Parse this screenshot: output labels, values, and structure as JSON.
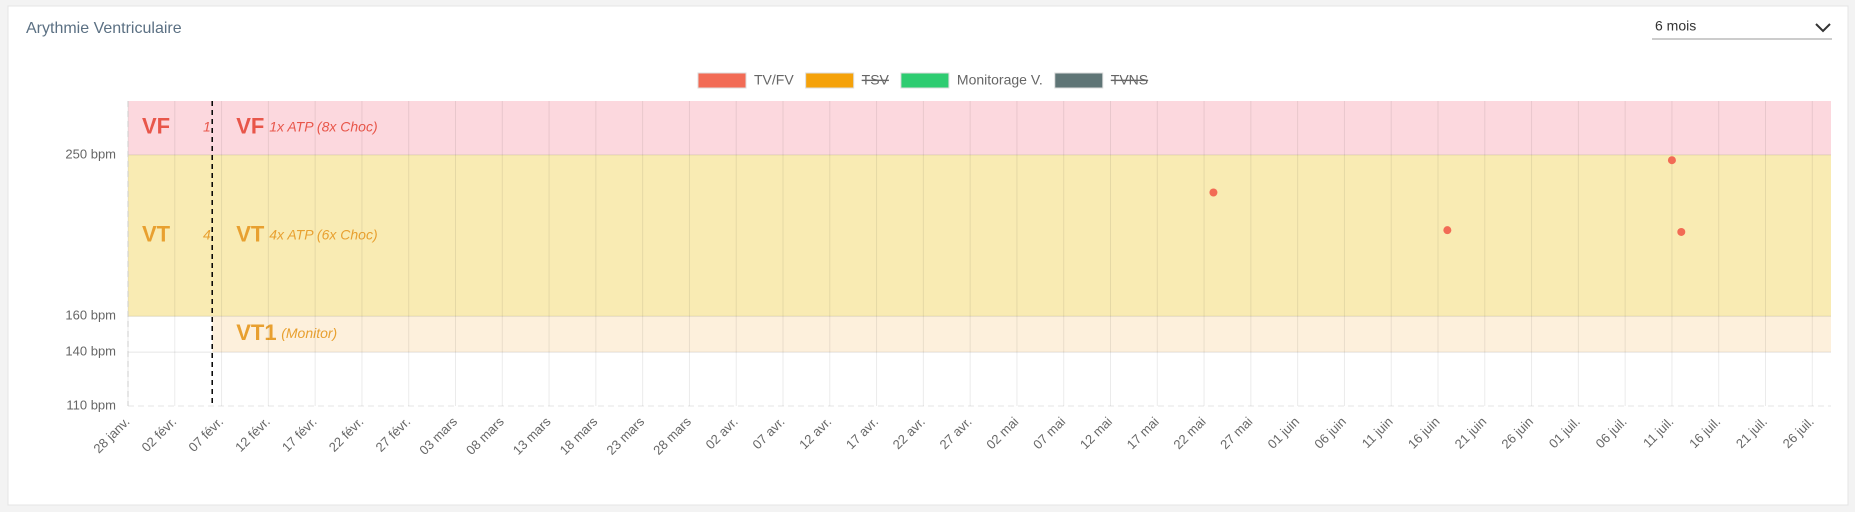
{
  "header": {
    "title": "Arythmie Ventriculaire",
    "period": "6 mois"
  },
  "chart_data": {
    "type": "scatter",
    "series": [
      {
        "name": "TV/FV",
        "color": "#f26b55",
        "hidden": false,
        "x": [
          116,
          141,
          165,
          166
        ],
        "values": [
          229,
          208,
          247,
          207
        ]
      },
      {
        "name": "TSV",
        "color": "#f5a20a",
        "hidden": true,
        "x": [],
        "values": []
      },
      {
        "name": "Monitorage V.",
        "color": "#2ecc71",
        "hidden": false,
        "x": [],
        "values": []
      },
      {
        "name": "TVNS",
        "color": "#5f7576",
        "hidden": true,
        "x": [],
        "values": []
      }
    ],
    "zones": [
      {
        "name": "VF",
        "prior": "1.",
        "note": "1x ATP (8x Choc)",
        "from": 250,
        "to": 280,
        "color": "#fcd8de",
        "text_color": "#e8564a",
        "before_marker": true
      },
      {
        "name": "VT",
        "prior": "4.",
        "note": "4x ATP (6x Choc)",
        "from": 160,
        "to": 250,
        "color": "#f9ebb3",
        "text_color": "#e8a030",
        "before_marker": true
      },
      {
        "name": "VT1",
        "note": "(Monitor)",
        "from": 140,
        "to": 160,
        "color": "#fdf0dc",
        "text_color": "#e8a030",
        "before_marker": false
      }
    ],
    "marker_x": 9,
    "xlim": [
      0,
      182
    ],
    "xticks": [
      {
        "value": 0,
        "label": "28 janv."
      },
      {
        "value": 5,
        "label": "02 févr."
      },
      {
        "value": 10,
        "label": "07 févr."
      },
      {
        "value": 15,
        "label": "12 févr."
      },
      {
        "value": 20,
        "label": "17 févr."
      },
      {
        "value": 25,
        "label": "22 févr."
      },
      {
        "value": 30,
        "label": "27 févr."
      },
      {
        "value": 35,
        "label": "03 mars"
      },
      {
        "value": 40,
        "label": "08 mars"
      },
      {
        "value": 45,
        "label": "13 mars"
      },
      {
        "value": 50,
        "label": "18 mars"
      },
      {
        "value": 55,
        "label": "23 mars"
      },
      {
        "value": 60,
        "label": "28 mars"
      },
      {
        "value": 65,
        "label": "02 avr."
      },
      {
        "value": 70,
        "label": "07 avr."
      },
      {
        "value": 75,
        "label": "12 avr."
      },
      {
        "value": 80,
        "label": "17 avr."
      },
      {
        "value": 85,
        "label": "22 avr."
      },
      {
        "value": 90,
        "label": "27 avr."
      },
      {
        "value": 95,
        "label": "02 mai"
      },
      {
        "value": 100,
        "label": "07 mai"
      },
      {
        "value": 105,
        "label": "12 mai"
      },
      {
        "value": 110,
        "label": "17 mai"
      },
      {
        "value": 115,
        "label": "22 mai"
      },
      {
        "value": 120,
        "label": "27 mai"
      },
      {
        "value": 125,
        "label": "01 juin"
      },
      {
        "value": 130,
        "label": "06 juin"
      },
      {
        "value": 135,
        "label": "11 juin"
      },
      {
        "value": 140,
        "label": "16 juin"
      },
      {
        "value": 145,
        "label": "21 juin"
      },
      {
        "value": 150,
        "label": "26 juin"
      },
      {
        "value": 155,
        "label": "01 juil."
      },
      {
        "value": 160,
        "label": "06 juil."
      },
      {
        "value": 165,
        "label": "11 juil."
      },
      {
        "value": 170,
        "label": "16 juil."
      },
      {
        "value": 175,
        "label": "21 juil."
      },
      {
        "value": 180,
        "label": "26 juil."
      }
    ],
    "ylim": [
      110,
      280
    ],
    "yticks": [
      {
        "value": 110,
        "label": "110 bpm"
      },
      {
        "value": 140,
        "label": "140 bpm"
      },
      {
        "value": 160,
        "label": "160 bpm"
      },
      {
        "value": 250,
        "label": "250 bpm"
      }
    ],
    "grid": true
  }
}
